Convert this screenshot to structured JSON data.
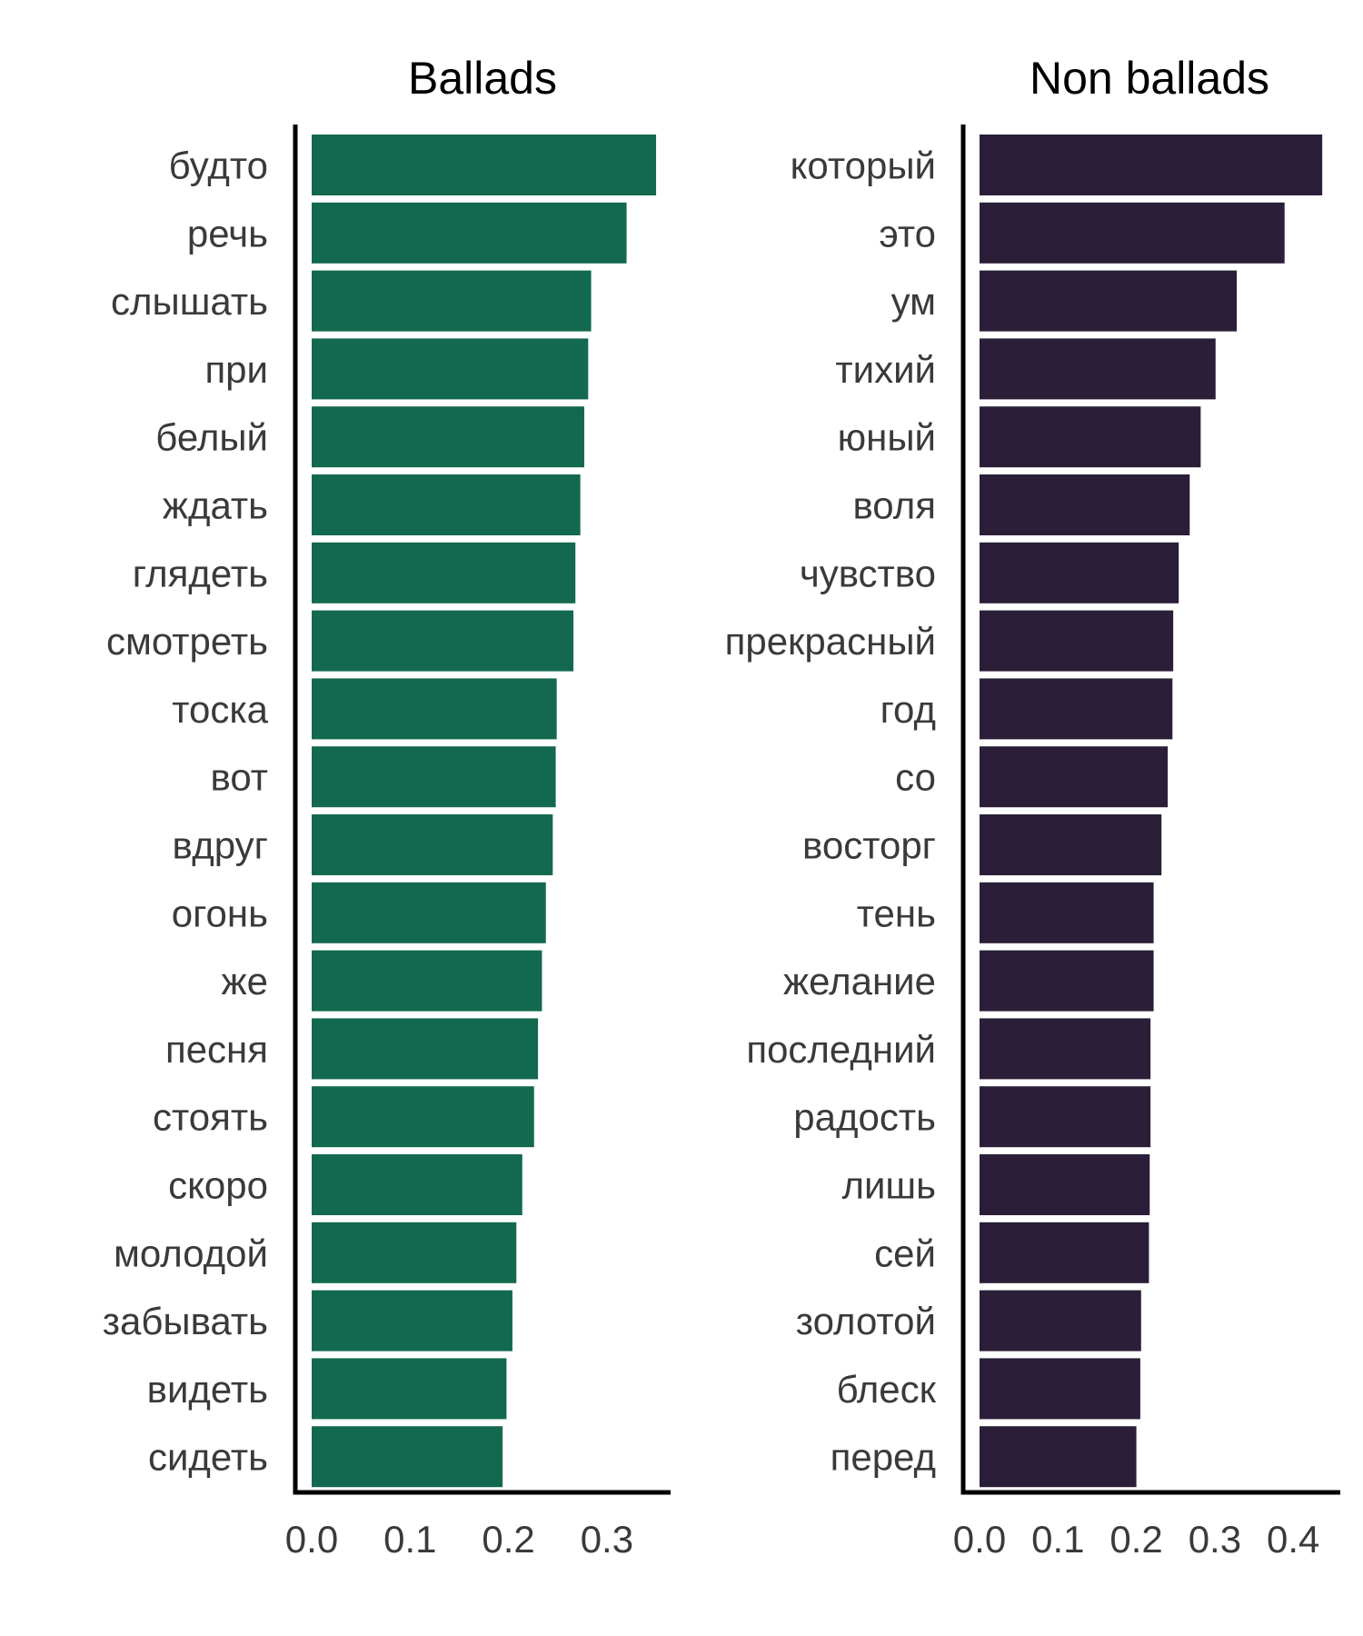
{
  "chart_data": [
    {
      "type": "bar",
      "orientation": "horizontal",
      "title": "Ballads",
      "xlabel": "",
      "ylabel": "",
      "color": "#136950",
      "xlim": [
        0,
        0.36
      ],
      "xticks": [
        0.0,
        0.1,
        0.2,
        0.3
      ],
      "xtick_labels": [
        "0.0",
        "0.1",
        "0.2",
        "0.3"
      ],
      "grid": false,
      "categories": [
        "будто",
        "речь",
        "слышать",
        "при",
        "белый",
        "ждать",
        "глядеть",
        "смотреть",
        "тоска",
        "вот",
        "вдруг",
        "огонь",
        "же",
        "песня",
        "стоять",
        "скоро",
        "молодой",
        "забывать",
        "видеть",
        "сидеть"
      ],
      "values": [
        0.35,
        0.32,
        0.284,
        0.281,
        0.277,
        0.273,
        0.268,
        0.266,
        0.249,
        0.248,
        0.245,
        0.238,
        0.234,
        0.23,
        0.226,
        0.214,
        0.208,
        0.204,
        0.198,
        0.194
      ]
    },
    {
      "type": "bar",
      "orientation": "horizontal",
      "title": "Non ballads",
      "xlabel": "",
      "ylabel": "",
      "color": "#2a1e38",
      "xlim": [
        0,
        0.46
      ],
      "xticks": [
        0.0,
        0.1,
        0.2,
        0.3,
        0.4
      ],
      "xtick_labels": [
        "0.0",
        "0.1",
        "0.2",
        "0.3",
        "0.4"
      ],
      "grid": false,
      "categories": [
        "который",
        "это",
        "ум",
        "тихий",
        "юный",
        "воля",
        "чувство",
        "прекрасный",
        "год",
        "со",
        "восторг",
        "тень",
        "желание",
        "последний",
        "радость",
        "лишь",
        "сей",
        "золотой",
        "блеск",
        "перед"
      ],
      "values": [
        0.437,
        0.389,
        0.328,
        0.301,
        0.282,
        0.268,
        0.254,
        0.247,
        0.246,
        0.24,
        0.232,
        0.222,
        0.222,
        0.218,
        0.218,
        0.217,
        0.216,
        0.206,
        0.205,
        0.2
      ]
    }
  ]
}
